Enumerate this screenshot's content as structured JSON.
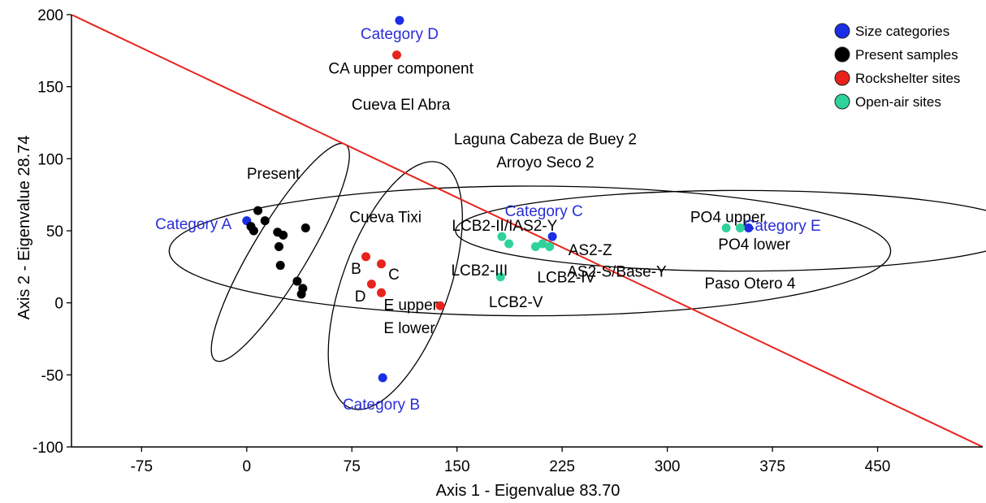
{
  "chart_data": {
    "type": "scatter",
    "title": "",
    "xlabel": "Axis 1 - Eigenvalue 83.70",
    "ylabel": "Axis 2 - Eigenvalue 28.74",
    "xlim": [
      -125,
      525
    ],
    "ylim": [
      -100,
      200
    ],
    "xticks": [
      "-75",
      "0",
      "75",
      "150",
      "225",
      "300",
      "375",
      "450"
    ],
    "yticks": [
      "-100",
      "-50",
      "0",
      "50",
      "100",
      "150",
      "200"
    ],
    "grid": false,
    "legend": {
      "position": "top-right",
      "entries": [
        {
          "label": "Size categories",
          "color": "#1b2ee6"
        },
        {
          "label": "Present samples",
          "color": "#000000"
        },
        {
          "label": "Rockshelter sites",
          "color": "#e8231c"
        },
        {
          "label": "Open-air sites",
          "color": "#2fd39a"
        }
      ]
    },
    "series": [
      {
        "name": "Size categories",
        "color": "#1b2ee6",
        "points": [
          {
            "x": 0,
            "y": 57
          },
          {
            "x": 97,
            "y": -52
          },
          {
            "x": 109,
            "y": 196
          },
          {
            "x": 218,
            "y": 46
          },
          {
            "x": 358,
            "y": 52
          }
        ]
      },
      {
        "name": "Present samples",
        "color": "#000000",
        "points": [
          {
            "x": 3,
            "y": 53
          },
          {
            "x": 5,
            "y": 50
          },
          {
            "x": 8,
            "y": 64
          },
          {
            "x": 13,
            "y": 57
          },
          {
            "x": 22,
            "y": 49
          },
          {
            "x": 23,
            "y": 39
          },
          {
            "x": 24,
            "y": 26
          },
          {
            "x": 26,
            "y": 47
          },
          {
            "x": 36,
            "y": 15
          },
          {
            "x": 40,
            "y": 10
          },
          {
            "x": 39,
            "y": 6
          },
          {
            "x": 42,
            "y": 52
          }
        ]
      },
      {
        "name": "Rockshelter sites",
        "color": "#e8231c",
        "points": [
          {
            "x": 107,
            "y": 172
          },
          {
            "x": 85,
            "y": 32
          },
          {
            "x": 96,
            "y": 27
          },
          {
            "x": 89,
            "y": 13
          },
          {
            "x": 96,
            "y": 7
          },
          {
            "x": 138,
            "y": -2
          }
        ]
      },
      {
        "name": "Open-air sites",
        "color": "#2fd39a",
        "points": [
          {
            "x": 182,
            "y": 46
          },
          {
            "x": 187,
            "y": 41
          },
          {
            "x": 206,
            "y": 39
          },
          {
            "x": 211,
            "y": 41
          },
          {
            "x": 216,
            "y": 39
          },
          {
            "x": 181,
            "y": 18
          },
          {
            "x": 342,
            "y": 52
          },
          {
            "x": 352,
            "y": 52
          }
        ]
      }
    ],
    "trend_line": {
      "color": "#e8231c",
      "from": {
        "x": -125,
        "y": 200
      },
      "to": {
        "x": 525,
        "y": -100
      }
    },
    "ellipses": [
      {
        "cx": 24,
        "cy": 35,
        "rx": 58,
        "ry": 19,
        "angle": 59
      },
      {
        "cx": 106,
        "cy": 12,
        "rx": 60,
        "ry": 37,
        "angle": 70
      },
      {
        "cx": 202,
        "cy": 36,
        "rx": 166,
        "ry": 45,
        "angle": 0
      },
      {
        "cx": 352,
        "cy": 50,
        "rx": 131,
        "ry": 28,
        "angle": 0
      }
    ],
    "annotations": [
      {
        "text": "Category D",
        "x": 109,
        "y": 187,
        "color": "blue"
      },
      {
        "text": "CA upper component",
        "x": 110,
        "y": 163,
        "color": "black"
      },
      {
        "text": "Cueva El Abra",
        "x": 110,
        "y": 138,
        "color": "black"
      },
      {
        "text": "Laguna Cabeza de Buey 2",
        "x": 213,
        "y": 114,
        "color": "black"
      },
      {
        "text": "Arroyo Seco 2",
        "x": 213,
        "y": 98,
        "color": "black"
      },
      {
        "text": "Present",
        "x": 19,
        "y": 90,
        "color": "black"
      },
      {
        "text": "Category A",
        "x": -38,
        "y": 55,
        "color": "blue"
      },
      {
        "text": "Cueva Tixi",
        "x": 99,
        "y": 60,
        "color": "black"
      },
      {
        "text": "Category C",
        "x": 212,
        "y": 64,
        "color": "blue"
      },
      {
        "text": "LCB2-II/IAS2-Y",
        "x": 184,
        "y": 54,
        "color": "black"
      },
      {
        "text": "PO4 upper",
        "x": 343,
        "y": 60,
        "color": "black"
      },
      {
        "text": "Category E",
        "x": 382,
        "y": 54,
        "color": "blue"
      },
      {
        "text": "PO4 lower",
        "x": 362,
        "y": 41,
        "color": "black"
      },
      {
        "text": "AS2-Z",
        "x": 245,
        "y": 37,
        "color": "black"
      },
      {
        "text": "AS2-S/Base-Y",
        "x": 264,
        "y": 22,
        "color": "black"
      },
      {
        "text": "LCB2-III",
        "x": 166,
        "y": 23,
        "color": "black"
      },
      {
        "text": "LCB2-IV",
        "x": 228,
        "y": 18,
        "color": "black"
      },
      {
        "text": "Paso Otero 4",
        "x": 359,
        "y": 14,
        "color": "black"
      },
      {
        "text": "B",
        "x": 78,
        "y": 24,
        "color": "black"
      },
      {
        "text": "C",
        "x": 105,
        "y": 20,
        "color": "black"
      },
      {
        "text": "LCB2-V",
        "x": 192,
        "y": 1,
        "color": "black"
      },
      {
        "text": "D",
        "x": 81,
        "y": 5,
        "color": "black"
      },
      {
        "text": "E upper",
        "x": 117,
        "y": -1,
        "color": "black"
      },
      {
        "text": "E lower",
        "x": 116,
        "y": -17,
        "color": "black"
      },
      {
        "text": "Category B",
        "x": 96,
        "y": -70,
        "color": "blue"
      }
    ]
  }
}
